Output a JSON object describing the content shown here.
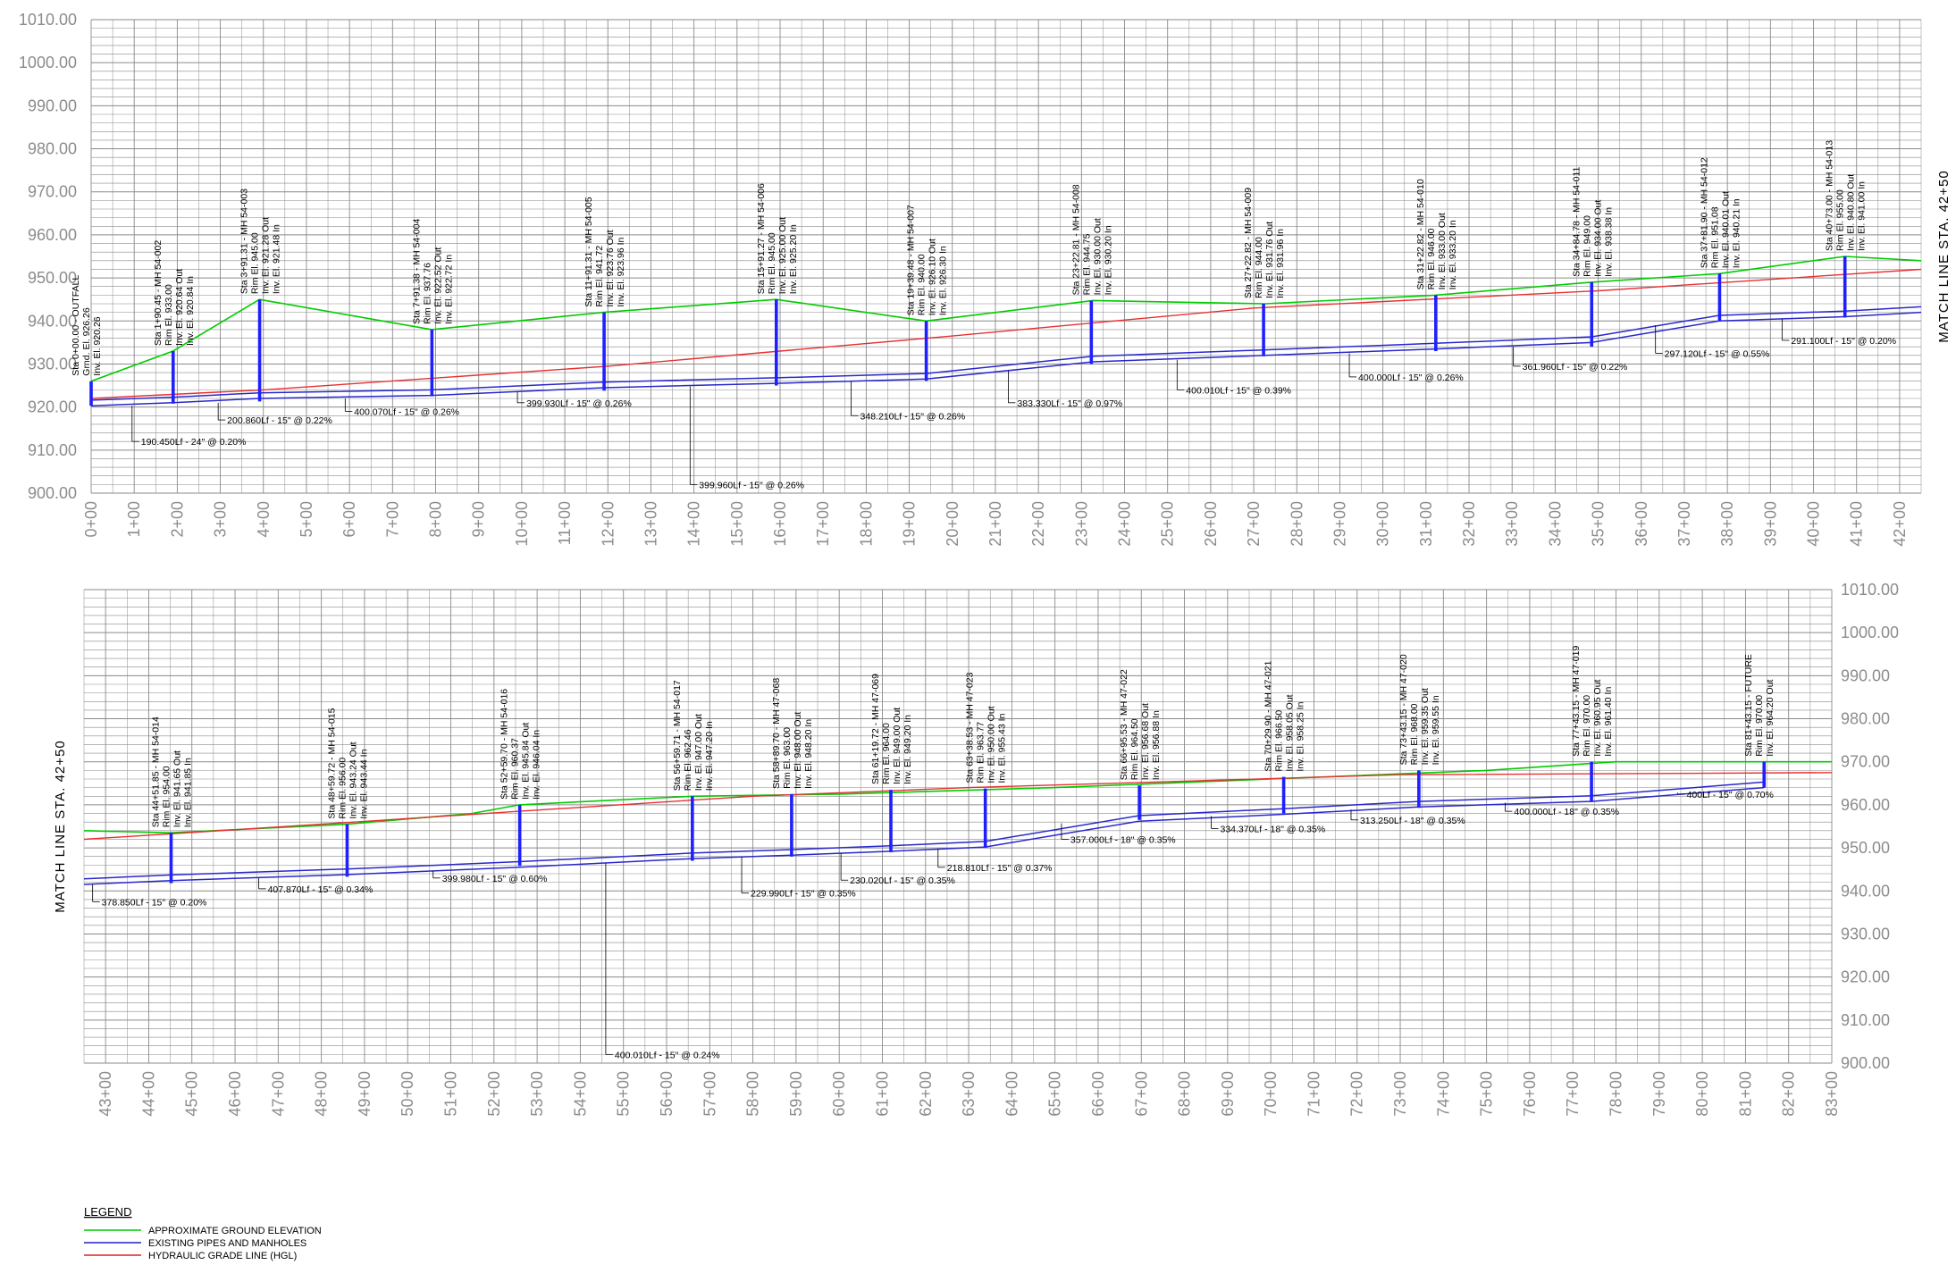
{
  "panels": [
    {
      "id": "top",
      "sta_start": 0,
      "sta_end": 4250,
      "x_tick_labels": [
        "0+00",
        "1+00",
        "2+00",
        "3+00",
        "4+00",
        "5+00",
        "6+00",
        "7+00",
        "8+00",
        "9+00",
        "10+00",
        "11+00",
        "12+00",
        "13+00",
        "14+00",
        "15+00",
        "16+00",
        "17+00",
        "18+00",
        "19+00",
        "20+00",
        "21+00",
        "22+00",
        "23+00",
        "24+00",
        "25+00",
        "26+00",
        "27+00",
        "28+00",
        "29+00",
        "30+00",
        "31+00",
        "32+00",
        "33+00",
        "34+00",
        "35+00",
        "36+00",
        "37+00",
        "38+00",
        "39+00",
        "40+00",
        "41+00",
        "42+00"
      ],
      "elev_labels": [
        "1010.00",
        "1000.00",
        "990.00",
        "980.00",
        "970.00",
        "960.00",
        "950.00",
        "940.00",
        "930.00",
        "920.00",
        "910.00",
        "900.00"
      ],
      "match_line": "MATCH LINE STA. 42+50",
      "ground": [
        [
          0,
          926
        ],
        [
          190,
          933
        ],
        [
          391,
          945
        ],
        [
          791,
          938
        ],
        [
          1191,
          942
        ],
        [
          1591,
          945
        ],
        [
          1939,
          940
        ],
        [
          2327,
          944.75
        ],
        [
          2727,
          944
        ],
        [
          3122,
          946
        ],
        [
          3484,
          949
        ],
        [
          3781,
          951
        ],
        [
          4073,
          955
        ],
        [
          4250,
          954
        ]
      ],
      "hgl": [
        [
          0,
          922
        ],
        [
          400,
          924
        ],
        [
          1200,
          929.5
        ],
        [
          2000,
          936.5
        ],
        [
          2700,
          943
        ],
        [
          3500,
          947
        ],
        [
          4250,
          952
        ]
      ],
      "pipes": [
        [
          0,
          920.3
        ],
        [
          190,
          921
        ],
        [
          391,
          922
        ],
        [
          791,
          922.7
        ],
        [
          1191,
          924.5
        ],
        [
          1591,
          925.5
        ],
        [
          1939,
          926.5
        ],
        [
          2327,
          930.5
        ],
        [
          2727,
          932
        ],
        [
          3122,
          933.5
        ],
        [
          3484,
          935
        ],
        [
          3781,
          940
        ],
        [
          4073,
          941
        ],
        [
          4250,
          942
        ]
      ],
      "manholes": [
        {
          "sta": 0,
          "top": 926,
          "bot": 920.3,
          "lines": [
            "Sta 0+00.00 - OUTFALL",
            "Grnd. El. 926.26",
            "Inv. El. 920.26"
          ]
        },
        {
          "sta": 190.45,
          "top": 933,
          "bot": 920.8,
          "lines": [
            "Sta 1+90.45 - MH 54-002",
            "Rim El. 933.00",
            "Inv. El. 920.64 Out",
            "Inv. El. 920.84 In"
          ]
        },
        {
          "sta": 391.31,
          "top": 945,
          "bot": 921.3,
          "lines": [
            "Sta 3+91.31 - MH 54-003",
            "Rim El. 945.00",
            "Inv. El. 921.28 Out",
            "Inv. El. 921.48 In"
          ]
        },
        {
          "sta": 791.38,
          "top": 938,
          "bot": 922.5,
          "lines": [
            "Sta 7+91.38 - MH 54-004",
            "Rim El. 937.76",
            "Inv. El. 922.52 Out",
            "Inv. El. 922.72 In"
          ]
        },
        {
          "sta": 1191.31,
          "top": 942,
          "bot": 923.8,
          "lines": [
            "Sta 11+91.31 - MH 54-005",
            "Rim El. 941.72",
            "Inv. El. 923.76 Out",
            "Inv. El. 923.96 In"
          ]
        },
        {
          "sta": 1591.27,
          "top": 945,
          "bot": 925,
          "lines": [
            "Sta 15+91.27 - MH 54-006",
            "Rim El. 945.00",
            "Inv. El. 925.00 Out",
            "Inv. El. 925.20 In"
          ]
        },
        {
          "sta": 1939.48,
          "top": 940,
          "bot": 926.1,
          "lines": [
            "Sta 19+39.48 - MH 54-007",
            "Rim El. 940.00",
            "Inv. El. 926.10 Out",
            "Inv. El. 926.30 In"
          ]
        },
        {
          "sta": 2322.81,
          "top": 944.75,
          "bot": 930,
          "lines": [
            "Sta 23+22.81 - MH 54-008",
            "Rim El. 944.75",
            "Inv. El. 930.00 Out",
            "Inv. El. 930.20 In"
          ]
        },
        {
          "sta": 2722.82,
          "top": 944,
          "bot": 931.8,
          "lines": [
            "Sta 27+22.82 - MH 54-009",
            "Rim El. 944.00",
            "Inv. El. 931.76 Out",
            "Inv. El. 931.96 In"
          ]
        },
        {
          "sta": 3122.82,
          "top": 946,
          "bot": 933,
          "lines": [
            "Sta 31+22.82 - MH 54-010",
            "Rim El. 946.00",
            "Inv. El. 933.00 Out",
            "Inv. El. 933.20 In"
          ]
        },
        {
          "sta": 3484.78,
          "top": 949,
          "bot": 934,
          "lines": [
            "Sta 34+84.78 - MH 54-011",
            "Rim El. 949.00",
            "Inv. El. 934.00 Out",
            "Inv. El. 938.38 In"
          ]
        },
        {
          "sta": 3781.9,
          "top": 951,
          "bot": 940,
          "lines": [
            "Sta 37+81.90 - MH 54-012",
            "Rim El. 951.08",
            "Inv. El. 940.01 Out",
            "Inv. El. 940.21 In"
          ]
        },
        {
          "sta": 4073,
          "top": 955,
          "bot": 940.8,
          "lines": [
            "Sta 40+73.00 - MH 54-013",
            "Rim El. 955.00",
            "Inv. El. 940.80 Out",
            "Inv. El. 941.00 In"
          ]
        }
      ],
      "pipe_labels": [
        {
          "sta": 95,
          "elev": 920.3,
          "lab_sta": 100,
          "lab_elev": 912,
          "text": "190.450Lf - 24\" @ 0.20%"
        },
        {
          "sta": 295,
          "elev": 921,
          "lab_sta": 305,
          "lab_elev": 917,
          "text": "200.860Lf - 15\" @ 0.22%"
        },
        {
          "sta": 590,
          "elev": 922,
          "lab_sta": 600,
          "lab_elev": 919,
          "text": "400.070Lf - 15\" @ 0.26%"
        },
        {
          "sta": 990,
          "elev": 923.5,
          "lab_sta": 1000,
          "lab_elev": 921,
          "text": "399.930Lf - 15\" @ 0.26%"
        },
        {
          "sta": 1391,
          "elev": 924.8,
          "lab_sta": 1400,
          "lab_elev": 902,
          "text": "399.960Lf - 15\" @ 0.26%"
        },
        {
          "sta": 1765,
          "elev": 926,
          "lab_sta": 1775,
          "lab_elev": 918,
          "text": "348.210Lf - 15\" @ 0.26%"
        },
        {
          "sta": 2130,
          "elev": 928.5,
          "lab_sta": 2140,
          "lab_elev": 921,
          "text": "383.330Lf - 15\" @ 0.97%"
        },
        {
          "sta": 2522,
          "elev": 931,
          "lab_sta": 2532,
          "lab_elev": 924,
          "text": "400.010Lf - 15\" @ 0.39%"
        },
        {
          "sta": 2922,
          "elev": 932.5,
          "lab_sta": 2932,
          "lab_elev": 927,
          "text": "400.000Lf - 15\" @ 0.26%"
        },
        {
          "sta": 3303,
          "elev": 934,
          "lab_sta": 3313,
          "lab_elev": 929.5,
          "text": "361.960Lf - 15\" @ 0.22%"
        },
        {
          "sta": 3633,
          "elev": 939,
          "lab_sta": 3643,
          "lab_elev": 932.5,
          "text": "297.120Lf - 15\" @ 0.55%"
        },
        {
          "sta": 3927,
          "elev": 940.5,
          "lab_sta": 3937,
          "lab_elev": 935.5,
          "text": "291.100Lf - 15\" @ 0.20%"
        }
      ]
    },
    {
      "id": "bottom",
      "sta_start": 4250,
      "sta_end": 8300,
      "x_tick_labels": [
        "43+00",
        "44+00",
        "45+00",
        "46+00",
        "47+00",
        "48+00",
        "49+00",
        "50+00",
        "51+00",
        "52+00",
        "53+00",
        "54+00",
        "55+00",
        "56+00",
        "57+00",
        "58+00",
        "59+00",
        "60+00",
        "61+00",
        "62+00",
        "63+00",
        "64+00",
        "65+00",
        "66+00",
        "67+00",
        "68+00",
        "69+00",
        "70+00",
        "71+00",
        "72+00",
        "73+00",
        "74+00",
        "75+00",
        "76+00",
        "77+00",
        "78+00",
        "79+00",
        "80+00",
        "81+00",
        "82+00",
        "83+00"
      ],
      "elev_labels": [
        "1010.00",
        "1000.00",
        "990.00",
        "980.00",
        "970.00",
        "960.00",
        "950.00",
        "940.00",
        "930.00",
        "920.00",
        "910.00",
        "900.00"
      ],
      "match_line": "MATCH LINE STA. 42+50",
      "ground": [
        [
          4250,
          954
        ],
        [
          4450,
          953.5
        ],
        [
          4859,
          955.5
        ],
        [
          5150,
          958
        ],
        [
          5259,
          960
        ],
        [
          5659,
          962
        ],
        [
          6000,
          962.5
        ],
        [
          6500,
          964
        ],
        [
          7000,
          966
        ],
        [
          7500,
          968
        ],
        [
          7800,
          970
        ],
        [
          8300,
          970
        ]
      ],
      "hgl": [
        [
          4250,
          952
        ],
        [
          4800,
          955.5
        ],
        [
          5259,
          958.5
        ],
        [
          5800,
          962
        ],
        [
          6300,
          964
        ],
        [
          6800,
          965.5
        ],
        [
          7300,
          967
        ],
        [
          8300,
          967.5
        ]
      ],
      "pipes": [
        [
          4250,
          941.5
        ],
        [
          4451,
          942.4
        ],
        [
          4859,
          943.8
        ],
        [
          5259,
          945.5
        ],
        [
          5659,
          947.5
        ],
        [
          5889,
          948.3
        ],
        [
          6119,
          949.2
        ],
        [
          6338,
          950.2
        ],
        [
          6695,
          956.2
        ],
        [
          7029,
          957.8
        ],
        [
          7343,
          959.5
        ],
        [
          7743,
          960.8
        ],
        [
          8143,
          964
        ]
      ],
      "manholes": [
        {
          "sta": 4451.85,
          "top": 953.5,
          "bot": 941.8,
          "lines": [
            "Sta 44+51.85 - MH 54-014",
            "Rim El. 954.00",
            "Inv. El. 941.65 Out",
            "Inv. El. 941.85 In"
          ]
        },
        {
          "sta": 4859.72,
          "top": 955.5,
          "bot": 943.3,
          "lines": [
            "Sta 48+59.72 - MH 54-015",
            "Rim El. 956.00",
            "Inv. El. 943.24 Out",
            "Inv. El. 943.44 In"
          ]
        },
        {
          "sta": 5259.7,
          "top": 960,
          "bot": 945.8,
          "lines": [
            "Sta 52+59.70 - MH 54-016",
            "Rim El. 960.37",
            "Inv. El. 945.84 Out",
            "Inv. El. 946.04 In"
          ]
        },
        {
          "sta": 5659.71,
          "top": 962,
          "bot": 947,
          "lines": [
            "Sta 56+59.71 - MH 54-017",
            "Rim El. 962.46",
            "Inv. El. 947.00 Out",
            "Inv. El. 947.20 In"
          ]
        },
        {
          "sta": 5889.7,
          "top": 962.5,
          "bot": 948,
          "lines": [
            "Sta 58+89.70 - MH 47-068",
            "Rim El. 963.00",
            "Inv. El. 948.00 Out",
            "Inv. El. 948.20 In"
          ]
        },
        {
          "sta": 6119.72,
          "top": 963.5,
          "bot": 949,
          "lines": [
            "Sta 61+19.72 - MH 47-069",
            "Rim El. 964.00",
            "Inv. El. 949.00 Out",
            "Inv. El. 949.20 In"
          ]
        },
        {
          "sta": 6338.53,
          "top": 963.8,
          "bot": 950,
          "lines": [
            "Sta 63+38.53 - MH 47-023",
            "Rim El. 963.77",
            "Inv. El. 950.00 Out",
            "Inv. El. 955.43 In"
          ]
        },
        {
          "sta": 6695.53,
          "top": 964.5,
          "bot": 956.5,
          "lines": [
            "Sta 66+95.53 - MH 47-022",
            "Rim El. 964.50",
            "Inv. El. 956.68 Out",
            "Inv. El. 956.88 In"
          ]
        },
        {
          "sta": 7029.9,
          "top": 966.5,
          "bot": 958,
          "lines": [
            "Sta 70+29.90 - MH 47-021",
            "Rim El. 966.50",
            "Inv. El. 958.05 Out",
            "Inv. El. 958.25 In"
          ]
        },
        {
          "sta": 7343.15,
          "top": 968,
          "bot": 959.3,
          "lines": [
            "Sta 73+43.15 - MH 47-020",
            "Rim El. 968.00",
            "Inv. El. 959.35 Out",
            "Inv. El. 959.55 In"
          ]
        },
        {
          "sta": 7743.15,
          "top": 970,
          "bot": 960.8,
          "lines": [
            "Sta 77+43.15 - MH 47-019",
            "Rim El. 970.00",
            "Inv. El. 960.95 Out",
            "Inv. El. 961.40 In"
          ]
        },
        {
          "sta": 8143.15,
          "top": 970,
          "bot": 964,
          "lines": [
            "Sta 81+43.15 - FUTURE",
            "Rim El. 970.00",
            "Inv. El. 964.20 Out"
          ]
        }
      ],
      "pipe_labels": [
        {
          "sta": 4270,
          "elev": 941.5,
          "lab_sta": 4280,
          "lab_elev": 937.5,
          "text": "378.850Lf - 15\" @ 0.20%"
        },
        {
          "sta": 4655,
          "elev": 943,
          "lab_sta": 4665,
          "lab_elev": 940.5,
          "text": "407.870Lf - 15\" @ 0.34%"
        },
        {
          "sta": 5059,
          "elev": 944.7,
          "lab_sta": 5069,
          "lab_elev": 943,
          "text": "399.980Lf - 15\" @ 0.60%"
        },
        {
          "sta": 5459,
          "elev": 946.5,
          "lab_sta": 5469,
          "lab_elev": 902,
          "text": "400.010Lf - 15\" @ 0.24%"
        },
        {
          "sta": 5774,
          "elev": 947.9,
          "lab_sta": 5784,
          "lab_elev": 939.5,
          "text": "229.990Lf - 15\" @ 0.35%"
        },
        {
          "sta": 6004,
          "elev": 948.8,
          "lab_sta": 6014,
          "lab_elev": 942.5,
          "text": "230.020Lf - 15\" @ 0.35%"
        },
        {
          "sta": 6229,
          "elev": 949.8,
          "lab_sta": 6239,
          "lab_elev": 945.5,
          "text": "218.810Lf - 15\" @ 0.37%"
        },
        {
          "sta": 6515,
          "elev": 955.7,
          "lab_sta": 6525,
          "lab_elev": 952,
          "text": "357.000Lf - 18\" @ 0.35%"
        },
        {
          "sta": 6862,
          "elev": 957.4,
          "lab_sta": 6872,
          "lab_elev": 954.5,
          "text": "334.370Lf - 18\" @ 0.35%"
        },
        {
          "sta": 7186,
          "elev": 958.9,
          "lab_sta": 7196,
          "lab_elev": 956.5,
          "text": "313.250Lf - 18\" @ 0.35%"
        },
        {
          "sta": 7543,
          "elev": 960.5,
          "lab_sta": 7553,
          "lab_elev": 958.5,
          "text": "400.000Lf - 18\" @ 0.35%"
        },
        {
          "sta": 7943,
          "elev": 962.8,
          "lab_sta": 7953,
          "lab_elev": 962.5,
          "text": "400Lf - 15\" @ 0.70%"
        }
      ]
    }
  ],
  "legend": {
    "title": "LEGEND",
    "items": [
      {
        "label": "APPROXIMATE GROUND ELEVATION",
        "color": "#00c800"
      },
      {
        "label": "EXISTING PIPES AND MANHOLES",
        "color": "#2020c8"
      },
      {
        "label": "HYDRAULIC GRADE LINE (HGL)",
        "color": "#e02020"
      }
    ]
  },
  "colors": {
    "ground": "#00cc00",
    "pipe": "#2828cc",
    "hgl": "#e83030",
    "manhole": "#2020ff",
    "grid": "#8a8a8a"
  }
}
